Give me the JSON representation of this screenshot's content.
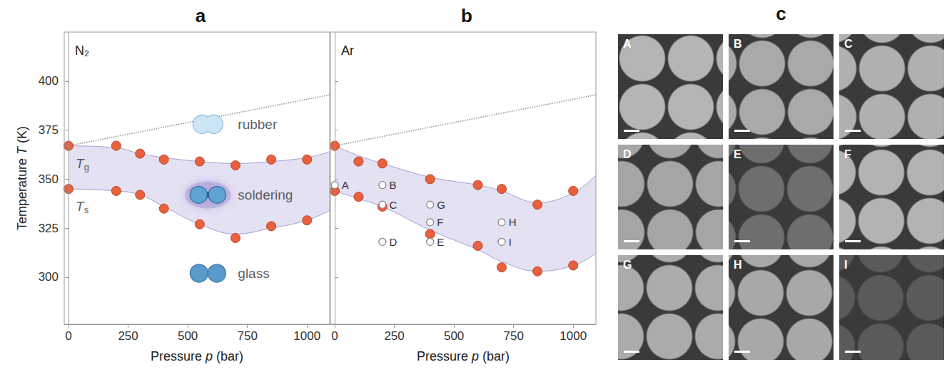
{
  "chart_data": [
    {
      "type": "scatter",
      "title": "a",
      "subtitle": "N₂",
      "x_label": "Pressure p (bar)",
      "y_label": "Temperature T (K)",
      "xlim": [
        -18,
        1095
      ],
      "xticks": [
        0,
        250,
        500,
        750,
        1000
      ],
      "ylim": [
        276,
        425
      ],
      "yticks": [
        300,
        325,
        350,
        375,
        400
      ],
      "x": [
        0,
        200,
        300,
        400,
        550,
        700,
        850,
        1000
      ],
      "series": [
        {
          "color": "#e8603c",
          "marker": "circle",
          "values": [
            367,
            367,
            363,
            360,
            359,
            357,
            360,
            360
          ]
        },
        {
          "color": "#e8603c",
          "marker": "circle",
          "values": [
            345,
            344,
            342,
            335,
            327,
            320,
            326,
            329
          ]
        }
      ],
      "band": {
        "color": "#e4e1f3",
        "x": [
          0,
          200,
          300,
          400,
          550,
          700,
          850,
          1000,
          1095
        ],
        "upper": [
          367,
          366,
          363,
          361,
          359,
          358,
          359,
          361,
          364
        ],
        "lower": [
          345,
          344,
          342,
          336,
          327,
          322,
          325,
          329,
          334
        ]
      },
      "reference_line": {
        "color": "#9a9a9a",
        "line_style": "dotted",
        "x": [
          0,
          1095
        ],
        "values": [
          367,
          393
        ]
      },
      "annotations": [
        {
          "text": "Tg",
          "x": 30,
          "y": 358
        },
        {
          "text": "Ts",
          "x": 30,
          "y": 336
        },
        {
          "text": "rubber",
          "x": 710,
          "y": 378,
          "marker": "rubber"
        },
        {
          "text": "soldering",
          "x": 710,
          "y": 342,
          "marker": "soldering"
        },
        {
          "text": "glass",
          "x": 710,
          "y": 302,
          "marker": "glass"
        }
      ]
    },
    {
      "type": "scatter",
      "title": "b",
      "subtitle": "Ar",
      "x_label": "Pressure p (bar)",
      "xlim": [
        -18,
        1095
      ],
      "xticks": [
        0,
        250,
        500,
        750,
        1000
      ],
      "ylim": [
        276,
        425
      ],
      "yticks": [
        300,
        325,
        350,
        375,
        400
      ],
      "tick_labels": "x",
      "x": [
        0,
        100,
        200,
        400,
        600,
        700,
        850,
        1000
      ],
      "series": [
        {
          "color": "#e8603c",
          "marker": "circle",
          "values": [
            367,
            359,
            358,
            350,
            347,
            345,
            337,
            344
          ]
        },
        {
          "color": "#e8603c",
          "marker": "circle",
          "values": [
            344,
            341,
            336,
            322,
            316,
            305,
            303,
            306
          ]
        }
      ],
      "band": {
        "color": "#e4e1f3",
        "x": [
          0,
          100,
          200,
          400,
          600,
          700,
          850,
          1000,
          1095
        ],
        "upper": [
          367,
          362,
          358,
          351,
          347,
          344,
          338,
          343,
          352
        ],
        "lower": [
          344,
          340,
          336,
          324,
          314,
          308,
          303,
          306,
          312
        ]
      },
      "reference_line": {
        "color": "#9a9a9a",
        "line_style": "dotted",
        "x": [
          0,
          1095
        ],
        "values": [
          367,
          393
        ]
      },
      "points": [
        {
          "label": "A",
          "x": 0,
          "y": 347
        },
        {
          "label": "B",
          "x": 200,
          "y": 347
        },
        {
          "label": "C",
          "x": 200,
          "y": 337
        },
        {
          "label": "D",
          "x": 200,
          "y": 318
        },
        {
          "label": "G",
          "x": 400,
          "y": 337
        },
        {
          "label": "F",
          "x": 400,
          "y": 328
        },
        {
          "label": "E",
          "x": 400,
          "y": 318
        },
        {
          "label": "H",
          "x": 700,
          "y": 328
        },
        {
          "label": "I",
          "x": 700,
          "y": 318
        }
      ]
    }
  ],
  "images": {
    "title": "c",
    "labels": [
      "A",
      "B",
      "C",
      "D",
      "E",
      "F",
      "G",
      "H",
      "I"
    ]
  }
}
